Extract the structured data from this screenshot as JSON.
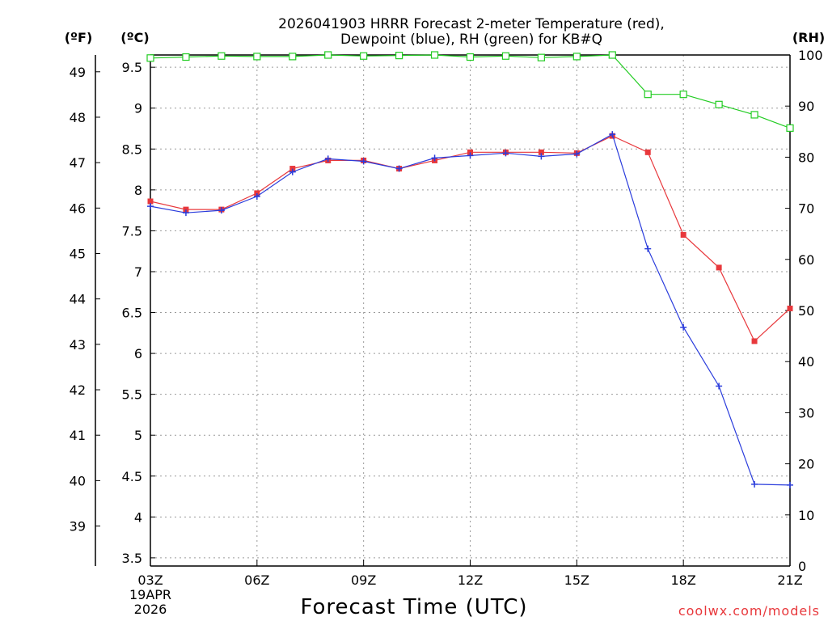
{
  "chart_data": {
    "type": "line",
    "title_lines": [
      "2026041903 HRRR Forecast 2-meter Temperature (red),",
      "Dewpoint (blue), RH (green) for KB#Q"
    ],
    "units": {
      "fahrenheit": "(ºF)",
      "celsius": "(ºC)",
      "rh": "(RH)"
    },
    "xlabel": "Forecast Time (UTC)",
    "x_hours": [
      3,
      4,
      5,
      6,
      7,
      8,
      9,
      10,
      11,
      12,
      13,
      14,
      15,
      16,
      17,
      18,
      19,
      20,
      21
    ],
    "x_ticks": [
      {
        "hour": 3,
        "label": "03Z"
      },
      {
        "hour": 6,
        "label": "06Z"
      },
      {
        "hour": 9,
        "label": "09Z"
      },
      {
        "hour": 12,
        "label": "12Z"
      },
      {
        "hour": 15,
        "label": "15Z"
      },
      {
        "hour": 18,
        "label": "18Z"
      },
      {
        "hour": 21,
        "label": "21Z"
      }
    ],
    "date_label": [
      "19APR",
      "2026"
    ],
    "xlim": [
      3,
      21
    ],
    "celsius_axis": {
      "ylim": [
        3.4,
        9.65
      ],
      "ticks": [
        "3.5",
        "4",
        "4.5",
        "5",
        "5.5",
        "6",
        "6.5",
        "7",
        "7.5",
        "8",
        "8.5",
        "9",
        "9.5"
      ]
    },
    "fahrenheit_axis": {
      "ylim": [
        38.12,
        49.37
      ],
      "ticks": [
        "39",
        "40",
        "41",
        "42",
        "43",
        "44",
        "45",
        "46",
        "47",
        "48",
        "49"
      ]
    },
    "rh_axis": {
      "ylim": [
        0,
        100
      ],
      "ticks": [
        "0",
        "10",
        "20",
        "30",
        "40",
        "50",
        "60",
        "70",
        "80",
        "90",
        "100"
      ]
    },
    "series": [
      {
        "name": "Temperature",
        "units": "°C",
        "color": "#e8383c",
        "marker": "square",
        "values": [
          7.86,
          7.76,
          7.76,
          7.96,
          8.26,
          8.36,
          8.36,
          8.26,
          8.36,
          8.46,
          8.46,
          8.46,
          8.45,
          8.66,
          8.46,
          7.45,
          7.05,
          6.15,
          6.55
        ]
      },
      {
        "name": "Dewpoint",
        "units": "°C",
        "color": "#2a3cdc",
        "marker": "plus",
        "values": [
          7.8,
          7.72,
          7.75,
          7.92,
          8.22,
          8.38,
          8.35,
          8.26,
          8.39,
          8.42,
          8.45,
          8.41,
          8.44,
          8.68,
          7.28,
          6.32,
          5.6,
          4.4,
          4.39
        ]
      },
      {
        "name": "RH",
        "units": "%",
        "color": "#22cc22",
        "marker": "open-square",
        "values": [
          99.4,
          99.6,
          99.8,
          99.7,
          99.7,
          100,
          99.8,
          99.9,
          100,
          99.6,
          99.8,
          99.5,
          99.7,
          100,
          92.3,
          92.3,
          90.3,
          88.3,
          85.7
        ]
      }
    ],
    "credit": "coolwx.com/models"
  }
}
